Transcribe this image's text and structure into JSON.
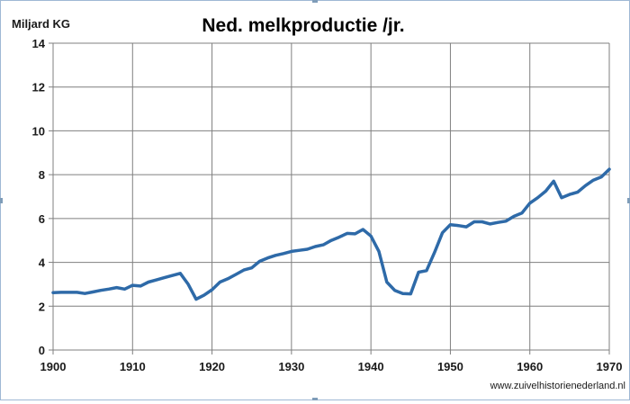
{
  "chart_data": {
    "type": "line",
    "title": "Ned. melkproductie /jr.",
    "ylabel": "Miljard KG",
    "xlabel": "",
    "xlim": [
      1900,
      1970
    ],
    "ylim": [
      0,
      14
    ],
    "x_ticks": [
      1900,
      1910,
      1920,
      1930,
      1940,
      1950,
      1960,
      1970
    ],
    "y_ticks": [
      0,
      2,
      4,
      6,
      8,
      10,
      12,
      14
    ],
    "grid": true,
    "line_color": "#2e6aa8",
    "grid_color": "#7f7f7f",
    "watermark": "www.zuivelhistorienederland.nl",
    "series": [
      {
        "x": [
          1900,
          1901,
          1902,
          1903,
          1904,
          1905,
          1906,
          1907,
          1908,
          1909,
          1910,
          1911,
          1912,
          1913,
          1914,
          1915,
          1916,
          1917,
          1918,
          1919,
          1920,
          1921,
          1922,
          1923,
          1924,
          1925,
          1926,
          1927,
          1928,
          1929,
          1930,
          1931,
          1932,
          1933,
          1934,
          1935,
          1936,
          1937,
          1938,
          1939,
          1940,
          1941,
          1942,
          1943,
          1944,
          1945,
          1946,
          1947,
          1948,
          1949,
          1950,
          1951,
          1952,
          1953,
          1954,
          1955,
          1956,
          1957,
          1958,
          1959,
          1960,
          1961,
          1962,
          1963,
          1964,
          1965,
          1966,
          1967,
          1968,
          1969,
          1970
        ],
        "y": [
          2.62,
          2.63,
          2.63,
          2.63,
          2.58,
          2.65,
          2.72,
          2.78,
          2.85,
          2.78,
          2.95,
          2.92,
          3.1,
          3.2,
          3.3,
          3.4,
          3.5,
          3.0,
          2.32,
          2.5,
          2.75,
          3.1,
          3.25,
          3.45,
          3.65,
          3.75,
          4.05,
          4.2,
          4.32,
          4.4,
          4.5,
          4.55,
          4.6,
          4.72,
          4.8,
          5.0,
          5.15,
          5.32,
          5.3,
          5.5,
          5.2,
          4.5,
          3.1,
          2.72,
          2.58,
          2.56,
          3.55,
          3.62,
          4.45,
          5.35,
          5.72,
          5.68,
          5.62,
          5.85,
          5.85,
          5.75,
          5.82,
          5.88,
          6.1,
          6.25,
          6.7,
          6.95,
          7.25,
          7.7,
          6.95,
          7.1,
          7.2,
          7.5,
          7.75,
          7.9,
          8.25
        ]
      }
    ]
  }
}
